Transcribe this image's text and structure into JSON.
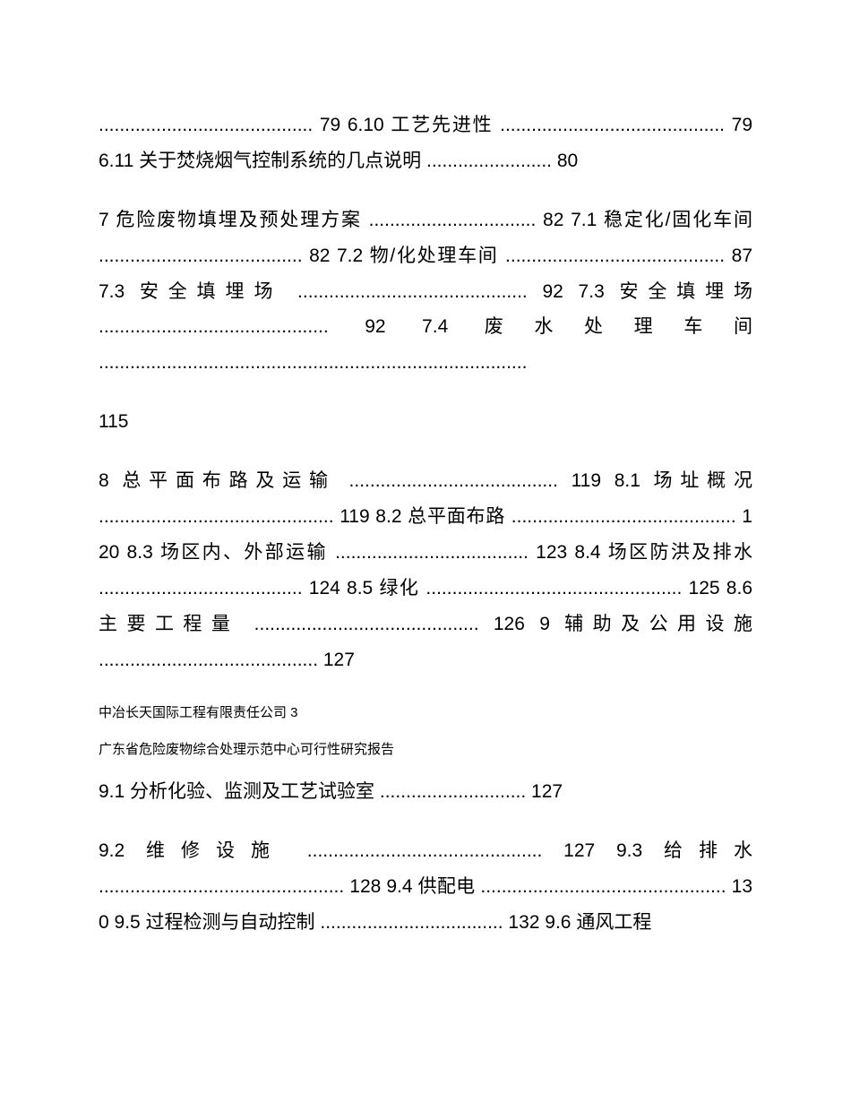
{
  "para1": "......................................... 79 6.10 工艺先进性 ........................................... 79 6.11 关于焚烧烟气控制系统的几点说明 ........................ 80",
  "para2": "7 危险废物填埋及预处理方案 ................................ 82 7.1 稳定化/固化车间 ....................................... 82 7.2 物/化处理车间 .......................................... 87 7.3 安全填埋场 ............................................ 92 7.3 安全填埋场 ............................................ 92 7.4 废水处理车间 ..................................................................................",
  "page115": "115",
  "para3": "8 总平面布路及运输 ........................................ 119 8.1 场址概况 ............................................. 119 8.2 总平面布路 ........................................... 120 8.3 场区内、外部运输 ..................................... 123 8.4 场区防洪及排水 ....................................... 124 8.5 绿化 ................................................. 125 8.6 主要工程量 ........................................... 126 9 辅助及公用设施 .......................................... 127",
  "footer1": "中冶长天国际工程有限责任公司 3",
  "footer2": "广东省危险废物综合处理示范中心可行性研究报告",
  "para4": "9.1 分析化验、监测及工艺试验室 ............................ 127",
  "para5": "9.2 维修设施 ............................................. 127 9.3 给排水 ............................................... 128 9.4 供配电 ............................................... 130 9.5 过程检测与自动控制 ................................... 132 9.6 通风工程"
}
